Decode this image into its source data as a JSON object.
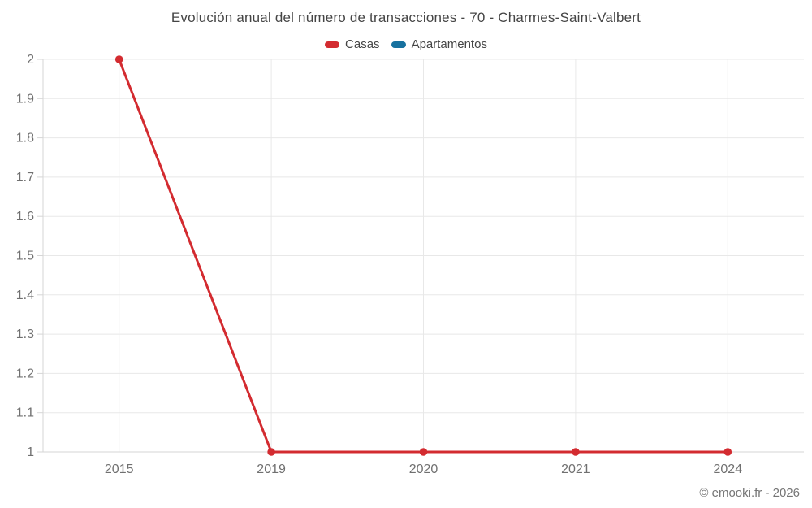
{
  "chart": {
    "title": "Evolución anual del número de transacciones - 70 - Charmes-Saint-Valbert",
    "legend": [
      {
        "label": "Casas",
        "color": "#d32b30"
      },
      {
        "label": "Apartamentos",
        "color": "#17719f"
      }
    ]
  },
  "footer": {
    "copyright": "© emooki.fr - 2026"
  },
  "chart_data": {
    "type": "line",
    "title": "Evolución anual del número de transacciones - 70 - Charmes-Saint-Valbert",
    "categories": [
      "2015",
      "2019",
      "2020",
      "2021",
      "2024"
    ],
    "series": [
      {
        "name": "Casas",
        "color": "#d32b30",
        "values": [
          2,
          1,
          1,
          1,
          1
        ]
      },
      {
        "name": "Apartamentos",
        "color": "#17719f",
        "values": []
      }
    ],
    "xlabel": "",
    "ylabel": "",
    "ylim": [
      1,
      2
    ],
    "y_ticks": [
      {
        "value": 2,
        "label": "2"
      },
      {
        "value": 1.9,
        "label": "1.9"
      },
      {
        "value": 1.8,
        "label": "1.8"
      },
      {
        "value": 1.7,
        "label": "1.7"
      },
      {
        "value": 1.6,
        "label": "1.6"
      },
      {
        "value": 1.5,
        "label": "1.5"
      },
      {
        "value": 1.4,
        "label": "1.4"
      },
      {
        "value": 1.3,
        "label": "1.3"
      },
      {
        "value": 1.2,
        "label": "1.2"
      },
      {
        "value": 1.1,
        "label": "1.1"
      },
      {
        "value": 1,
        "label": "1"
      }
    ],
    "grid": true,
    "legend_position": "top"
  },
  "colors": {
    "background": "#ffffff",
    "grid": "#e8e8e8",
    "axis": "#d6d6d6",
    "axis_text": "#707070",
    "title_text": "#454545",
    "copyright_text": "#757575"
  }
}
